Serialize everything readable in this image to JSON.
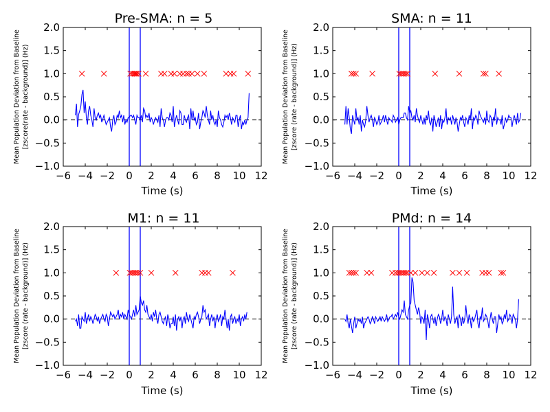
{
  "chart_data": [
    {
      "type": "line",
      "title": "Pre-SMA: n = 5",
      "xlabel": "Time (s)",
      "ylabel_lines": [
        "Mean Population Deviation from Baseline",
        "[zscore(rate - background)] (Hz)"
      ],
      "xlim": [
        -6,
        12
      ],
      "ylim": [
        -1.0,
        2.0
      ],
      "xticks": [
        "−6",
        "−4",
        "−2",
        "0",
        "2",
        "4",
        "6",
        "8",
        "10",
        "12"
      ],
      "yticks": [
        "−1.0",
        "−0.5",
        "0.0",
        "0.5",
        "1.0",
        "1.5",
        "2.0"
      ],
      "vlines": [
        0,
        1
      ],
      "baseline": 0,
      "series": [
        {
          "color": "#0000ff",
          "x_start": -4.9,
          "x_step": 0.1,
          "values": [
            0.1,
            0.35,
            -0.15,
            0.12,
            0.2,
            0.3,
            0.55,
            0.65,
            0.15,
            0.4,
            0.05,
            -0.1,
            0.2,
            0.3,
            0.1,
            0.0,
            -0.15,
            0.25,
            0.05,
            0.0,
            0.1,
            0.15,
            0.05,
            0.1,
            -0.05,
            0.02,
            0.1,
            0.0,
            -0.1,
            -0.05,
            0.0,
            0.05,
            -0.15,
            -0.25,
            0.0,
            0.1,
            -0.1,
            -0.05,
            0.1,
            0.05,
            0.2,
            0.05,
            0.1,
            -0.05,
            0.1,
            -0.1,
            0.0,
            -0.05,
            0.05,
            0.05,
            0.1,
            0.1,
            0.05,
            0.1,
            0.0,
            -0.1,
            0.1,
            0.05,
            0.05,
            0.0,
            0.1,
            -0.05,
            0.25,
            0.2,
            0.05,
            0.1,
            0.05,
            0.15,
            -0.05,
            0.05,
            0.0,
            -0.1,
            0.0,
            0.05,
            0.0,
            -0.05,
            0.1,
            -0.15,
            0.25,
            0.05,
            0.0,
            -0.15,
            0.0,
            0.05,
            0.05,
            0.0,
            0.15,
            0.1,
            -0.05,
            0.3,
            -0.15,
            0.0,
            0.1,
            0.0,
            -0.1,
            0.2,
            0.15,
            -0.1,
            -0.1,
            0.1,
            0.0,
            -0.05,
            0.05,
            0.1,
            -0.2,
            0.25,
            0.0,
            0.2,
            0.0,
            0.05,
            -0.1,
            -0.05,
            0.15,
            -0.2,
            -0.05,
            0.05,
            0.2,
            0.15,
            0.05,
            0.3,
            0.1,
            0.0,
            -0.1,
            0.2,
            0.0,
            0.1,
            -0.05,
            -0.1,
            0.0,
            -0.15,
            0.2,
            0.05,
            0.0,
            -0.1,
            -0.15,
            -0.05,
            0.1,
            0.05,
            0.1,
            0.0,
            0.15,
            0.05,
            -0.1,
            0.05,
            0.0,
            -0.05,
            0.1,
            0.1,
            -0.15,
            0.0,
            0.1,
            -0.2,
            -0.05,
            -0.1,
            0.0,
            -0.1,
            0.0,
            0.05,
            0.58
          ]
        }
      ],
      "markers": {
        "symbol": "x",
        "color": "#ff0000",
        "y": 1.0,
        "x": [
          -4.3,
          -2.3,
          0.1,
          0.25,
          0.4,
          0.5,
          0.6,
          0.7,
          0.85,
          1.5,
          2.9,
          3.2,
          3.8,
          4.1,
          4.6,
          4.9,
          5.2,
          5.4,
          5.7,
          6.2,
          6.8,
          8.8,
          9.2,
          9.5,
          10.8
        ]
      }
    },
    {
      "type": "line",
      "title": "SMA: n = 11",
      "xlabel": "Time (s)",
      "ylabel_lines": [
        "Mean Population Deviation from Baseline",
        "[zscore (rate - background)] (Hz)"
      ],
      "xlim": [
        -6,
        12
      ],
      "ylim": [
        -1.0,
        2.0
      ],
      "xticks": [
        "−6",
        "−4",
        "−2",
        "0",
        "2",
        "4",
        "6",
        "8",
        "10",
        "12"
      ],
      "yticks": [
        "−1.0",
        "−0.5",
        "0.0",
        "0.5",
        "1.0",
        "1.5",
        "2.0"
      ],
      "vlines": [
        0,
        1
      ],
      "baseline": 0,
      "series": [
        {
          "color": "#0000ff",
          "x_start": -4.9,
          "x_step": 0.1,
          "values": [
            -0.1,
            0.3,
            -0.1,
            0.25,
            0.05,
            -0.2,
            -0.3,
            0.1,
            0.0,
            -0.1,
            0.25,
            0.0,
            0.05,
            -0.1,
            0.1,
            -0.25,
            0.0,
            -0.1,
            -0.15,
            0.0,
            0.3,
            0.1,
            -0.05,
            0.05,
            0.1,
            0.0,
            -0.15,
            0.05,
            0.0,
            -0.1,
            -0.05,
            0.1,
            -0.1,
            -0.05,
            0.0,
            0.1,
            -0.05,
            0.1,
            0.0,
            -0.1,
            0.05,
            0.0,
            0.0,
            -0.05,
            0.1,
            0.05,
            -0.05,
            0.0,
            0.05,
            -0.1,
            0.0,
            0.05,
            0.05,
            0.05,
            0.15,
            0.15,
            0.05,
            0.0,
            0.3,
            0.15,
            0.2,
            0.05,
            0.0,
            0.1,
            -0.05,
            0.25,
            0.1,
            0.0,
            -0.05,
            0.1,
            0.0,
            -0.1,
            0.05,
            -0.1,
            0.1,
            0.0,
            0.2,
            -0.05,
            -0.1,
            0.05,
            -0.25,
            0.1,
            0.0,
            -0.15,
            -0.05,
            0.05,
            -0.15,
            0.1,
            -0.2,
            0.0,
            -0.05,
            0.05,
            0.25,
            -0.1,
            0.05,
            0.0,
            0.05,
            -0.1,
            0.1,
            0.0,
            -0.1,
            0.05,
            -0.05,
            -0.25,
            -0.1,
            0.05,
            0.0,
            0.1,
            -0.05,
            -0.15,
            0.05,
            0.0,
            -0.1,
            0.1,
            0.0,
            0.25,
            -0.2,
            0.05,
            0.0,
            0.1,
            0.05,
            -0.1,
            0.2,
            0.1,
            0.05,
            0.0,
            -0.05,
            0.05,
            -0.1,
            0.2,
            0.0,
            -0.05,
            0.1,
            0.05,
            -0.15,
            0.05,
            0.0,
            0.25,
            -0.1,
            0.05,
            0.0,
            0.0,
            -0.1,
            0.1,
            -0.2,
            -0.1,
            0.05,
            -0.05,
            0.0,
            0.1,
            0.05,
            0.05,
            -0.15,
            0.0,
            0.1,
            0.0,
            -0.1,
            0.15,
            -0.05,
            0.0,
            0.15
          ]
        }
      ],
      "markers": {
        "symbol": "x",
        "color": "#ff0000",
        "y": 1.0,
        "x": [
          -4.3,
          -4.1,
          -3.9,
          -2.4,
          0.05,
          0.2,
          0.35,
          0.5,
          0.65,
          0.8,
          3.3,
          5.5,
          7.7,
          7.9,
          9.1
        ]
      }
    },
    {
      "type": "line",
      "title": "M1: n = 11",
      "xlabel": "Time (s)",
      "ylabel_lines": [
        "Mean Population Deviation from Baseline",
        "[zscore (rate - background)] (Hz)"
      ],
      "xlim": [
        -6,
        12
      ],
      "ylim": [
        -1.0,
        2.0
      ],
      "xticks": [
        "−6",
        "−4",
        "−2",
        "0",
        "2",
        "4",
        "6",
        "8",
        "10",
        "12"
      ],
      "yticks": [
        "−1.0",
        "−0.5",
        "0.0",
        "0.5",
        "1.0",
        "1.5",
        "2.0"
      ],
      "vlines": [
        0,
        1
      ],
      "baseline": 0,
      "series": [
        {
          "color": "#0000ff",
          "x_start": -4.9,
          "x_step": 0.1,
          "values": [
            -0.05,
            0.0,
            -0.15,
            0.1,
            -0.2,
            -0.2,
            0.05,
            0.0,
            -0.05,
            0.15,
            -0.1,
            0.0,
            0.1,
            -0.05,
            0.05,
            0.0,
            -0.1,
            0.0,
            0.1,
            0.05,
            -0.05,
            0.05,
            -0.1,
            0.0,
            0.05,
            0.1,
            0.0,
            -0.05,
            0.1,
            0.05,
            -0.15,
            0.0,
            0.15,
            0.1,
            0.05,
            0.1,
            0.0,
            0.05,
            0.1,
            0.2,
            0.0,
            0.1,
            0.05,
            0.15,
            0.0,
            0.1,
            0.05,
            0.0,
            0.2,
            0.1,
            0.05,
            0.0,
            0.1,
            0.2,
            0.05,
            0.3,
            0.1,
            0.15,
            0.2,
            0.5,
            0.35,
            0.3,
            0.4,
            0.2,
            0.15,
            0.3,
            0.1,
            0.05,
            0.0,
            0.1,
            -0.05,
            0.15,
            0.05,
            0.2,
            0.0,
            -0.1,
            0.1,
            0.15,
            0.05,
            -0.05,
            -0.1,
            0.0,
            0.05,
            -0.15,
            0.1,
            0.0,
            -0.2,
            -0.1,
            -0.1,
            0.05,
            -0.15,
            0.1,
            -0.25,
            0.0,
            0.05,
            -0.05,
            0.05,
            -0.2,
            0.0,
            0.05,
            -0.1,
            0.15,
            0.0,
            -0.05,
            0.1,
            0.0,
            -0.1,
            -0.2,
            0.05,
            0.0,
            0.1,
            0.15,
            0.05,
            -0.1,
            0.0,
            0.05,
            0.3,
            0.15,
            0.2,
            0.0,
            0.05,
            0.1,
            -0.15,
            0.0,
            0.1,
            -0.05,
            0.05,
            -0.2,
            0.0,
            0.1,
            -0.05,
            0.0,
            0.1,
            -0.15,
            0.05,
            0.0,
            0.2,
            0.0,
            -0.2,
            0.0,
            -0.25,
            0.05,
            0.1,
            -0.1,
            0.0,
            0.05,
            -0.1,
            0.0,
            -0.05,
            0.1,
            -0.15,
            0.0,
            0.05,
            -0.05,
            0.1,
            0.0,
            0.15
          ]
        }
      ],
      "markers": {
        "symbol": "x",
        "color": "#ff0000",
        "y": 1.0,
        "x": [
          -1.2,
          0.05,
          0.2,
          0.35,
          0.5,
          0.65,
          0.8,
          1.0,
          2.0,
          4.2,
          6.6,
          6.9,
          7.2,
          9.4
        ]
      }
    },
    {
      "type": "line",
      "title": "PMd: n = 14",
      "xlabel": "Time (s)",
      "ylabel_lines": [
        "Mean Population Deviation from Baseline",
        "[zscore (rate - background)] (Hz)"
      ],
      "xlim": [
        -6,
        12
      ],
      "ylim": [
        -1.0,
        2.0
      ],
      "xticks": [
        "−6",
        "−4",
        "−2",
        "0",
        "2",
        "4",
        "6",
        "8",
        "10",
        "12"
      ],
      "yticks": [
        "−1.0",
        "−0.5",
        "0.0",
        "0.5",
        "1.0",
        "1.5",
        "2.0"
      ],
      "vlines": [
        0,
        1
      ],
      "baseline": 0,
      "series": [
        {
          "color": "#0000ff",
          "x_start": -4.9,
          "x_step": 0.1,
          "values": [
            0.0,
            -0.05,
            0.1,
            -0.1,
            -0.2,
            0.0,
            -0.15,
            -0.3,
            -0.1,
            0.05,
            -0.2,
            -0.1,
            0.0,
            -0.05,
            0.0,
            -0.1,
            0.05,
            -0.2,
            -0.1,
            -0.05,
            0.0,
            0.05,
            0.0,
            -0.1,
            -0.05,
            0.05,
            0.0,
            -0.1,
            0.05,
            0.0,
            -0.05,
            0.0,
            0.05,
            -0.05,
            0.05,
            0.0,
            -0.05,
            0.0,
            0.1,
            -0.05,
            0.0,
            0.05,
            0.05,
            0.1,
            0.0,
            0.05,
            0.1,
            0.05,
            0.15,
            0.05,
            0.0,
            0.1,
            0.2,
            0.15,
            0.4,
            0.1,
            0.05,
            0.0,
            0.2,
            0.3,
            0.35,
            0.9,
            0.8,
            0.4,
            0.3,
            0.2,
            0.1,
            0.25,
            0.15,
            -0.1,
            0.05,
            0.0,
            -0.1,
            0.2,
            -0.45,
            0.1,
            0.0,
            -0.2,
            0.05,
            0.1,
            0.0,
            -0.1,
            0.05,
            -0.15,
            0.0,
            0.1,
            0.05,
            -0.1,
            0.0,
            0.2,
            -0.05,
            0.05,
            0.0,
            -0.15,
            0.1,
            0.0,
            -0.1,
            0.05,
            0.7,
            0.1,
            -0.1,
            0.0,
            0.05,
            -0.2,
            0.1,
            0.0,
            -0.15,
            0.05,
            -0.1,
            0.0,
            0.3,
            0.05,
            -0.1,
            0.1,
            0.0,
            -0.2,
            0.05,
            -0.05,
            0.0,
            0.1,
            0.2,
            -0.1,
            -0.2,
            0.05,
            0.0,
            0.25,
            -0.05,
            0.0,
            0.1,
            0.05,
            -0.05,
            -0.2,
            0.0,
            0.15,
            0.0,
            -0.1,
            0.05,
            0.05,
            -0.3,
            -0.1,
            0.1,
            0.0,
            0.05,
            -0.1,
            -0.05,
            0.1,
            0.0,
            0.2,
            -0.05,
            0.0,
            0.1,
            0.05,
            -0.1,
            0.1,
            0.05,
            0.0,
            -0.2,
            0.0,
            0.43
          ]
        }
      ],
      "markers": {
        "symbol": "x",
        "color": "#ff0000",
        "y": 1.0,
        "x": [
          -4.5,
          -4.3,
          -4.1,
          -3.9,
          -2.9,
          -2.5,
          -0.6,
          -0.3,
          -0.1,
          0.05,
          0.2,
          0.35,
          0.5,
          0.65,
          0.8,
          1.1,
          1.5,
          2.1,
          2.6,
          3.2,
          4.9,
          5.5,
          6.2,
          7.6,
          7.9,
          8.2,
          9.3,
          9.5
        ]
      }
    }
  ]
}
